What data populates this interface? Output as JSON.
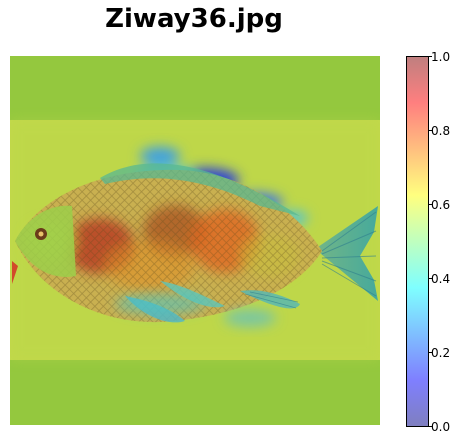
{
  "title": "Ziway36.jpg",
  "image": {
    "subject": "fish with saliency heatmap overlay",
    "background_color": "#94c83e",
    "band_color": "#c2d94a"
  },
  "colorbar": {
    "min": 0.0,
    "max": 1.0,
    "colormap": "jet",
    "alpha": 0.5,
    "ticks": [
      "0.0",
      "0.2",
      "0.4",
      "0.6",
      "0.8",
      "1.0"
    ],
    "tick_values": [
      0.0,
      0.2,
      0.4,
      0.6,
      0.8,
      1.0
    ]
  }
}
